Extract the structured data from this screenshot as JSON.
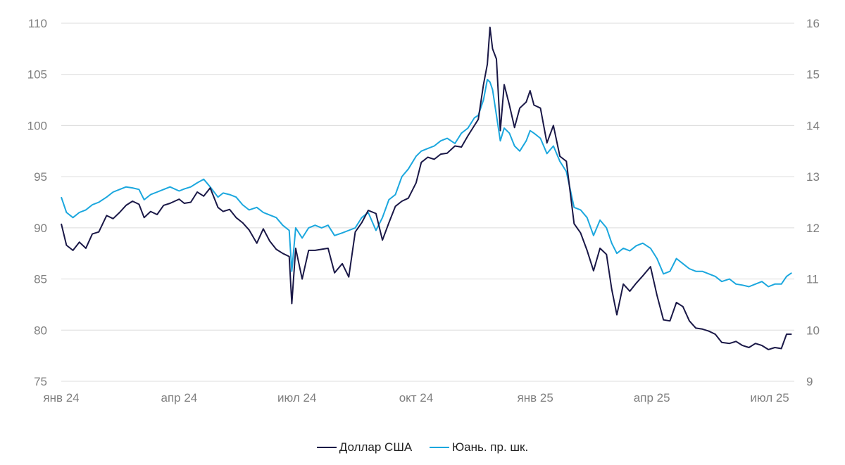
{
  "chart_data": {
    "type": "line",
    "title": "",
    "xlabel": "",
    "ylabel": "",
    "x_ticks": [
      {
        "label": "янв 24",
        "date": "2024-01-01"
      },
      {
        "label": "апр 24",
        "date": "2024-04-01"
      },
      {
        "label": "июл 24",
        "date": "2024-07-01"
      },
      {
        "label": "окт 24",
        "date": "2024-10-01"
      },
      {
        "label": "янв 25",
        "date": "2025-01-01"
      },
      {
        "label": "апр 25",
        "date": "2025-04-01"
      },
      {
        "label": "июл 25",
        "date": "2025-07-01"
      }
    ],
    "xlim": [
      "2024-01-01",
      "2025-07-20"
    ],
    "y_left": {
      "ylim": [
        75,
        110
      ],
      "ticks": [
        75,
        80,
        85,
        90,
        95,
        100,
        105,
        110
      ]
    },
    "y_right": {
      "ylim": [
        9,
        16
      ],
      "ticks": [
        9,
        10,
        11,
        12,
        13,
        14,
        15,
        16
      ]
    },
    "grid": "horizontal",
    "legend_position": "bottom-center",
    "series": [
      {
        "name": "Доллар США",
        "axis": "left",
        "color": "#1a1847",
        "points": [
          [
            "2024-01-01",
            90.4
          ],
          [
            "2024-01-05",
            88.3
          ],
          [
            "2024-01-10",
            87.8
          ],
          [
            "2024-01-15",
            88.6
          ],
          [
            "2024-01-20",
            88.0
          ],
          [
            "2024-01-25",
            89.4
          ],
          [
            "2024-01-30",
            89.6
          ],
          [
            "2024-02-05",
            91.2
          ],
          [
            "2024-02-10",
            90.9
          ],
          [
            "2024-02-15",
            91.5
          ],
          [
            "2024-02-20",
            92.2
          ],
          [
            "2024-02-25",
            92.6
          ],
          [
            "2024-03-01",
            92.3
          ],
          [
            "2024-03-05",
            91.0
          ],
          [
            "2024-03-10",
            91.6
          ],
          [
            "2024-03-15",
            91.3
          ],
          [
            "2024-03-20",
            92.2
          ],
          [
            "2024-03-25",
            92.4
          ],
          [
            "2024-04-01",
            92.8
          ],
          [
            "2024-04-05",
            92.4
          ],
          [
            "2024-04-10",
            92.5
          ],
          [
            "2024-04-15",
            93.5
          ],
          [
            "2024-04-20",
            93.1
          ],
          [
            "2024-04-25",
            93.9
          ],
          [
            "2024-05-01",
            92.0
          ],
          [
            "2024-05-05",
            91.6
          ],
          [
            "2024-05-10",
            91.8
          ],
          [
            "2024-05-15",
            91.0
          ],
          [
            "2024-05-20",
            90.5
          ],
          [
            "2024-05-25",
            89.8
          ],
          [
            "2024-05-31",
            88.5
          ],
          [
            "2024-06-05",
            89.9
          ],
          [
            "2024-06-10",
            88.7
          ],
          [
            "2024-06-15",
            87.9
          ],
          [
            "2024-06-20",
            87.5
          ],
          [
            "2024-06-25",
            87.2
          ],
          [
            "2024-06-27",
            82.6
          ],
          [
            "2024-06-30",
            88.0
          ],
          [
            "2024-07-05",
            85.0
          ],
          [
            "2024-07-10",
            87.8
          ],
          [
            "2024-07-15",
            87.8
          ],
          [
            "2024-07-20",
            87.9
          ],
          [
            "2024-07-25",
            88.0
          ],
          [
            "2024-07-30",
            85.6
          ],
          [
            "2024-08-05",
            86.5
          ],
          [
            "2024-08-10",
            85.2
          ],
          [
            "2024-08-15",
            89.6
          ],
          [
            "2024-08-20",
            90.5
          ],
          [
            "2024-08-25",
            91.7
          ],
          [
            "2024-08-31",
            91.4
          ],
          [
            "2024-09-05",
            88.8
          ],
          [
            "2024-09-10",
            90.5
          ],
          [
            "2024-09-15",
            92.1
          ],
          [
            "2024-09-20",
            92.6
          ],
          [
            "2024-09-25",
            92.9
          ],
          [
            "2024-10-01",
            94.4
          ],
          [
            "2024-10-05",
            96.4
          ],
          [
            "2024-10-10",
            96.9
          ],
          [
            "2024-10-15",
            96.7
          ],
          [
            "2024-10-20",
            97.2
          ],
          [
            "2024-10-25",
            97.3
          ],
          [
            "2024-10-31",
            98.0
          ],
          [
            "2024-11-05",
            97.9
          ],
          [
            "2024-11-10",
            99.0
          ],
          [
            "2024-11-15",
            100.0
          ],
          [
            "2024-11-18",
            100.6
          ],
          [
            "2024-11-22",
            104.0
          ],
          [
            "2024-11-25",
            106.0
          ],
          [
            "2024-11-27",
            109.6
          ],
          [
            "2024-11-29",
            107.5
          ],
          [
            "2024-12-02",
            106.5
          ],
          [
            "2024-12-05",
            99.5
          ],
          [
            "2024-12-08",
            104.0
          ],
          [
            "2024-12-12",
            102.0
          ],
          [
            "2024-12-16",
            99.8
          ],
          [
            "2024-12-20",
            101.7
          ],
          [
            "2024-12-25",
            102.3
          ],
          [
            "2024-12-28",
            103.4
          ],
          [
            "2024-12-31",
            102.0
          ],
          [
            "2025-01-05",
            101.7
          ],
          [
            "2025-01-10",
            98.3
          ],
          [
            "2025-01-15",
            100.0
          ],
          [
            "2025-01-20",
            97.0
          ],
          [
            "2025-01-25",
            96.5
          ],
          [
            "2025-01-31",
            90.4
          ],
          [
            "2025-02-05",
            89.5
          ],
          [
            "2025-02-10",
            87.8
          ],
          [
            "2025-02-15",
            85.8
          ],
          [
            "2025-02-20",
            88.0
          ],
          [
            "2025-02-25",
            87.4
          ],
          [
            "2025-03-01",
            84.0
          ],
          [
            "2025-03-05",
            81.5
          ],
          [
            "2025-03-10",
            84.5
          ],
          [
            "2025-03-15",
            83.8
          ],
          [
            "2025-03-20",
            84.6
          ],
          [
            "2025-03-25",
            85.3
          ],
          [
            "2025-03-31",
            86.2
          ],
          [
            "2025-04-05",
            83.4
          ],
          [
            "2025-04-10",
            81.0
          ],
          [
            "2025-04-15",
            80.9
          ],
          [
            "2025-04-20",
            82.7
          ],
          [
            "2025-04-25",
            82.3
          ],
          [
            "2025-04-30",
            80.9
          ],
          [
            "2025-05-05",
            80.2
          ],
          [
            "2025-05-10",
            80.1
          ],
          [
            "2025-05-15",
            79.9
          ],
          [
            "2025-05-20",
            79.6
          ],
          [
            "2025-05-25",
            78.8
          ],
          [
            "2025-05-31",
            78.7
          ],
          [
            "2025-06-05",
            78.9
          ],
          [
            "2025-06-10",
            78.5
          ],
          [
            "2025-06-15",
            78.3
          ],
          [
            "2025-06-20",
            78.7
          ],
          [
            "2025-06-25",
            78.5
          ],
          [
            "2025-06-30",
            78.1
          ],
          [
            "2025-07-05",
            78.3
          ],
          [
            "2025-07-10",
            78.2
          ],
          [
            "2025-07-14",
            79.6
          ],
          [
            "2025-07-18",
            79.6
          ]
        ]
      },
      {
        "name": "Юань. пр. шк.",
        "axis": "right",
        "color": "#1ba7de",
        "points": [
          [
            "2024-01-01",
            12.6
          ],
          [
            "2024-01-05",
            12.3
          ],
          [
            "2024-01-10",
            12.2
          ],
          [
            "2024-01-15",
            12.3
          ],
          [
            "2024-01-20",
            12.35
          ],
          [
            "2024-01-25",
            12.45
          ],
          [
            "2024-01-30",
            12.5
          ],
          [
            "2024-02-05",
            12.6
          ],
          [
            "2024-02-10",
            12.7
          ],
          [
            "2024-02-15",
            12.75
          ],
          [
            "2024-02-20",
            12.8
          ],
          [
            "2024-02-25",
            12.78
          ],
          [
            "2024-03-01",
            12.75
          ],
          [
            "2024-03-05",
            12.55
          ],
          [
            "2024-03-10",
            12.65
          ],
          [
            "2024-03-15",
            12.7
          ],
          [
            "2024-03-20",
            12.75
          ],
          [
            "2024-03-25",
            12.8
          ],
          [
            "2024-04-01",
            12.72
          ],
          [
            "2024-04-05",
            12.76
          ],
          [
            "2024-04-10",
            12.8
          ],
          [
            "2024-04-15",
            12.88
          ],
          [
            "2024-04-20",
            12.95
          ],
          [
            "2024-04-25",
            12.8
          ],
          [
            "2024-05-01",
            12.6
          ],
          [
            "2024-05-05",
            12.68
          ],
          [
            "2024-05-10",
            12.65
          ],
          [
            "2024-05-15",
            12.6
          ],
          [
            "2024-05-20",
            12.45
          ],
          [
            "2024-05-25",
            12.35
          ],
          [
            "2024-05-31",
            12.4
          ],
          [
            "2024-06-05",
            12.3
          ],
          [
            "2024-06-10",
            12.25
          ],
          [
            "2024-06-15",
            12.2
          ],
          [
            "2024-06-20",
            12.05
          ],
          [
            "2024-06-25",
            11.95
          ],
          [
            "2024-06-27",
            11.15
          ],
          [
            "2024-06-30",
            12.0
          ],
          [
            "2024-07-05",
            11.8
          ],
          [
            "2024-07-10",
            12.0
          ],
          [
            "2024-07-15",
            12.05
          ],
          [
            "2024-07-20",
            12.0
          ],
          [
            "2024-07-25",
            12.05
          ],
          [
            "2024-07-30",
            11.85
          ],
          [
            "2024-08-05",
            11.9
          ],
          [
            "2024-08-10",
            11.95
          ],
          [
            "2024-08-15",
            12.0
          ],
          [
            "2024-08-20",
            12.2
          ],
          [
            "2024-08-25",
            12.3
          ],
          [
            "2024-08-31",
            11.95
          ],
          [
            "2024-09-05",
            12.2
          ],
          [
            "2024-09-10",
            12.55
          ],
          [
            "2024-09-15",
            12.65
          ],
          [
            "2024-09-20",
            13.0
          ],
          [
            "2024-09-25",
            13.15
          ],
          [
            "2024-10-01",
            13.4
          ],
          [
            "2024-10-05",
            13.5
          ],
          [
            "2024-10-10",
            13.55
          ],
          [
            "2024-10-15",
            13.6
          ],
          [
            "2024-10-20",
            13.7
          ],
          [
            "2024-10-25",
            13.75
          ],
          [
            "2024-10-31",
            13.65
          ],
          [
            "2024-11-05",
            13.85
          ],
          [
            "2024-11-10",
            13.95
          ],
          [
            "2024-11-15",
            14.15
          ],
          [
            "2024-11-18",
            14.2
          ],
          [
            "2024-11-22",
            14.5
          ],
          [
            "2024-11-25",
            14.9
          ],
          [
            "2024-11-27",
            14.85
          ],
          [
            "2024-11-29",
            14.7
          ],
          [
            "2024-12-02",
            14.2
          ],
          [
            "2024-12-05",
            13.7
          ],
          [
            "2024-12-08",
            13.95
          ],
          [
            "2024-12-12",
            13.85
          ],
          [
            "2024-12-16",
            13.6
          ],
          [
            "2024-12-20",
            13.5
          ],
          [
            "2024-12-25",
            13.7
          ],
          [
            "2024-12-28",
            13.9
          ],
          [
            "2024-12-31",
            13.85
          ],
          [
            "2025-01-05",
            13.75
          ],
          [
            "2025-01-10",
            13.45
          ],
          [
            "2025-01-15",
            13.6
          ],
          [
            "2025-01-20",
            13.3
          ],
          [
            "2025-01-25",
            13.1
          ],
          [
            "2025-01-31",
            12.4
          ],
          [
            "2025-02-05",
            12.35
          ],
          [
            "2025-02-10",
            12.2
          ],
          [
            "2025-02-15",
            11.85
          ],
          [
            "2025-02-20",
            12.15
          ],
          [
            "2025-02-25",
            12.0
          ],
          [
            "2025-03-01",
            11.7
          ],
          [
            "2025-03-05",
            11.5
          ],
          [
            "2025-03-10",
            11.6
          ],
          [
            "2025-03-15",
            11.55
          ],
          [
            "2025-03-20",
            11.65
          ],
          [
            "2025-03-25",
            11.7
          ],
          [
            "2025-03-31",
            11.6
          ],
          [
            "2025-04-05",
            11.4
          ],
          [
            "2025-04-10",
            11.1
          ],
          [
            "2025-04-15",
            11.15
          ],
          [
            "2025-04-20",
            11.4
          ],
          [
            "2025-04-25",
            11.3
          ],
          [
            "2025-04-30",
            11.2
          ],
          [
            "2025-05-05",
            11.15
          ],
          [
            "2025-05-10",
            11.15
          ],
          [
            "2025-05-15",
            11.1
          ],
          [
            "2025-05-20",
            11.05
          ],
          [
            "2025-05-25",
            10.95
          ],
          [
            "2025-05-31",
            11.0
          ],
          [
            "2025-06-05",
            10.9
          ],
          [
            "2025-06-10",
            10.88
          ],
          [
            "2025-06-15",
            10.85
          ],
          [
            "2025-06-20",
            10.9
          ],
          [
            "2025-06-25",
            10.95
          ],
          [
            "2025-06-30",
            10.85
          ],
          [
            "2025-07-05",
            10.9
          ],
          [
            "2025-07-10",
            10.9
          ],
          [
            "2025-07-14",
            11.05
          ],
          [
            "2025-07-18",
            11.12
          ]
        ]
      }
    ]
  }
}
